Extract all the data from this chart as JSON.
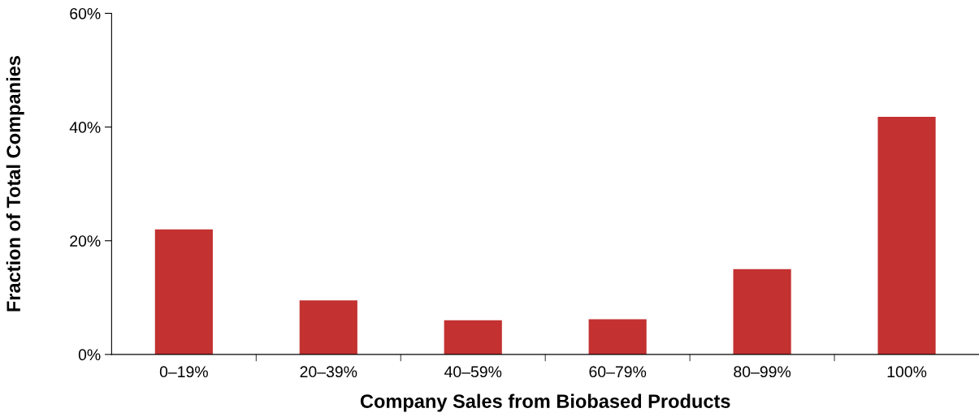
{
  "chart_data": {
    "type": "bar",
    "xlabel": "Company Sales from Biobased Products",
    "ylabel": "Fraction of Total Companies",
    "categories": [
      "0–19%",
      "20–39%",
      "40–59%",
      "60–79%",
      "80–99%",
      "100%"
    ],
    "values": [
      22,
      9.5,
      6,
      6.2,
      15,
      41.8
    ],
    "color": "#c33131",
    "ylim": [
      0,
      60
    ],
    "yticks": [
      {
        "value": 0,
        "label": "0%"
      },
      {
        "value": 20,
        "label": "20%"
      },
      {
        "value": 40,
        "label": "40%"
      },
      {
        "value": 60,
        "label": "60%"
      }
    ],
    "grid": false
  }
}
